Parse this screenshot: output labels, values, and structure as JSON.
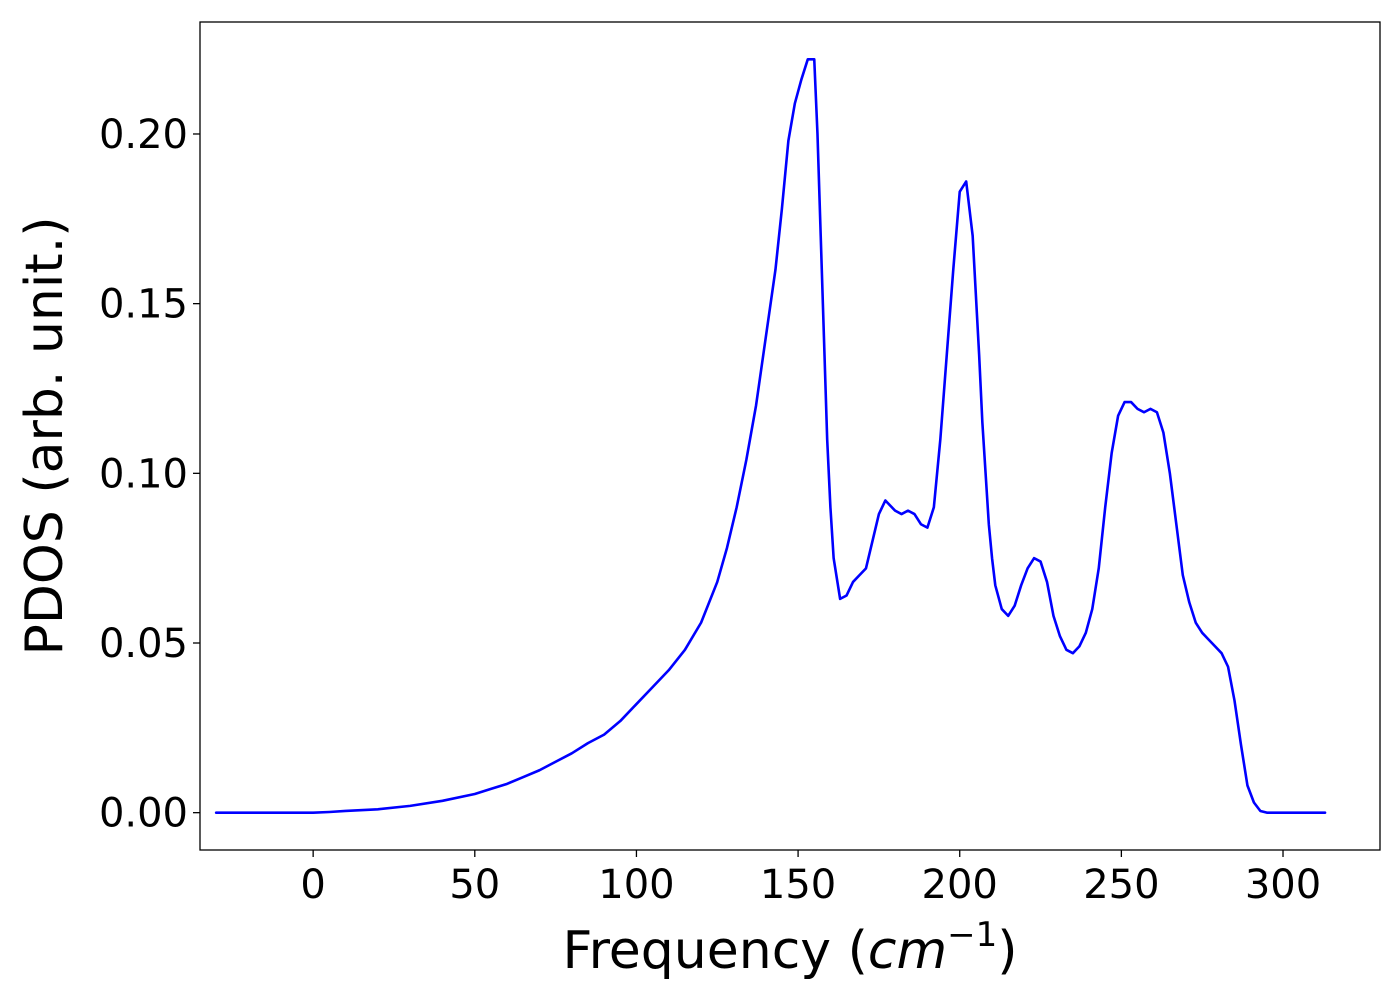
{
  "chart_data": {
    "type": "line",
    "title": "",
    "xlabel": {
      "prefix": "Frequency (",
      "unit_base": "cm",
      "unit_exponent": "−1",
      "suffix": ")"
    },
    "ylabel": "PDOS (arb. unit.)",
    "xlim": [
      -35,
      330
    ],
    "ylim": [
      -0.011,
      0.233
    ],
    "xticks": [
      0,
      50,
      100,
      150,
      200,
      250,
      300
    ],
    "xtick_labels": [
      "0",
      "50",
      "100",
      "150",
      "200",
      "250",
      "300"
    ],
    "yticks": [
      0.0,
      0.05,
      0.1,
      0.15,
      0.2
    ],
    "ytick_labels": [
      "0.00",
      "0.05",
      "0.10",
      "0.15",
      "0.20"
    ],
    "grid": false,
    "legend": "none",
    "series": [
      {
        "color": "#0000ff",
        "x": [
          -30,
          0,
          5,
          10,
          20,
          30,
          40,
          50,
          55,
          60,
          65,
          70,
          75,
          80,
          85,
          90,
          95,
          100,
          105,
          110,
          115,
          120,
          125,
          128,
          131,
          134,
          137,
          140,
          143,
          145,
          147,
          149,
          151,
          153,
          155,
          156,
          157,
          158,
          159,
          160,
          161,
          163,
          165,
          167,
          169,
          171,
          173,
          175,
          177,
          178,
          180,
          182,
          184,
          186,
          188,
          190,
          192,
          194,
          196,
          198,
          200,
          202,
          204,
          206,
          207,
          208,
          209,
          210,
          211,
          213,
          215,
          217,
          219,
          221,
          223,
          225,
          227,
          229,
          231,
          233,
          235,
          237,
          239,
          241,
          243,
          245,
          247,
          249,
          251,
          253,
          255,
          257,
          259,
          261,
          263,
          265,
          267,
          269,
          271,
          273,
          275,
          277,
          279,
          281,
          283,
          285,
          287,
          289,
          291,
          293,
          295,
          300,
          305,
          313
        ],
        "y": [
          0.0,
          0.0,
          0.0002,
          0.0005,
          0.001,
          0.002,
          0.0035,
          0.0055,
          0.007,
          0.0085,
          0.0105,
          0.0125,
          0.015,
          0.0175,
          0.0205,
          0.023,
          0.027,
          0.032,
          0.037,
          0.042,
          0.048,
          0.056,
          0.068,
          0.078,
          0.09,
          0.104,
          0.12,
          0.14,
          0.16,
          0.178,
          0.198,
          0.209,
          0.216,
          0.222,
          0.222,
          0.2,
          0.17,
          0.14,
          0.11,
          0.09,
          0.075,
          0.063,
          0.064,
          0.068,
          0.07,
          0.072,
          0.08,
          0.088,
          0.092,
          0.091,
          0.089,
          0.088,
          0.089,
          0.088,
          0.085,
          0.084,
          0.09,
          0.11,
          0.135,
          0.16,
          0.183,
          0.186,
          0.17,
          0.135,
          0.115,
          0.1,
          0.085,
          0.075,
          0.067,
          0.06,
          0.058,
          0.061,
          0.067,
          0.072,
          0.075,
          0.074,
          0.068,
          0.058,
          0.052,
          0.048,
          0.047,
          0.049,
          0.053,
          0.06,
          0.072,
          0.09,
          0.106,
          0.117,
          0.121,
          0.121,
          0.119,
          0.118,
          0.119,
          0.118,
          0.112,
          0.1,
          0.085,
          0.07,
          0.062,
          0.056,
          0.053,
          0.051,
          0.049,
          0.047,
          0.043,
          0.033,
          0.02,
          0.008,
          0.003,
          0.0005,
          0.0,
          0.0,
          0.0,
          0.0
        ]
      }
    ]
  }
}
